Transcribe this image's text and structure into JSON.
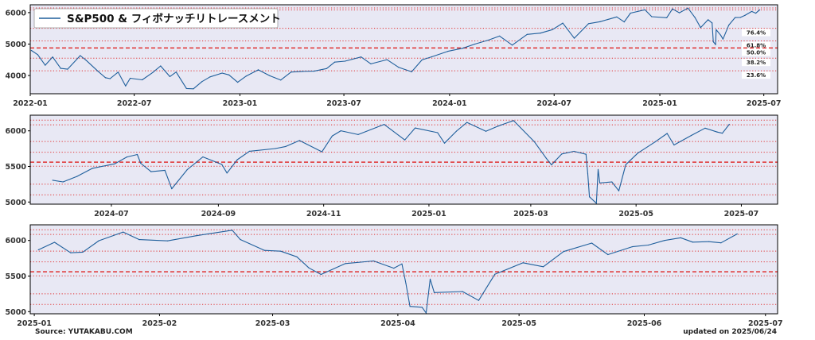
{
  "chart_data": [
    {
      "type": "line",
      "legend": "S&P500 & フィボナッチリトレースメント",
      "legend_position": "top-left",
      "grid": false,
      "x_start": "2022-01-01",
      "x_end": "2025-07-25",
      "ylim": [
        3420,
        6250
      ],
      "y_ticks": [
        4000,
        5000,
        6000
      ],
      "x_ticks": [
        {
          "date": "2022-01-01",
          "label": "2022-01"
        },
        {
          "date": "2022-07-01",
          "label": "2022-07"
        },
        {
          "date": "2023-01-01",
          "label": "2023-01"
        },
        {
          "date": "2023-07-01",
          "label": "2023-07"
        },
        {
          "date": "2024-01-01",
          "label": "2024-01"
        },
        {
          "date": "2024-07-01",
          "label": "2024-07"
        },
        {
          "date": "2025-01-01",
          "label": "2025-01"
        },
        {
          "date": "2025-07-01",
          "label": "2025-07"
        }
      ],
      "fib_levels": [
        {
          "label": "76.4%",
          "value": 5503,
          "style": "dotted"
        },
        {
          "label": "61.8%",
          "value": 5101,
          "style": "dotted"
        },
        {
          "label": "50.0%",
          "value": 4876,
          "style": "dashed"
        },
        {
          "label": "38.2%",
          "value": 4552,
          "style": "dotted"
        },
        {
          "label": "23.6%",
          "value": 4150,
          "style": "dotted"
        }
      ],
      "extra_dotted_levels": [
        6150,
        6085
      ],
      "series": [
        {
          "x": [
            "2022-01-03",
            "2022-01-14",
            "2022-01-27",
            "2022-02-09",
            "2022-02-23",
            "2022-03-07",
            "2022-03-29",
            "2022-04-08",
            "2022-04-29",
            "2022-05-12",
            "2022-05-20",
            "2022-06-03",
            "2022-06-16",
            "2022-06-24",
            "2022-07-15",
            "2022-08-02",
            "2022-08-16",
            "2022-09-01",
            "2022-09-12",
            "2022-09-30",
            "2022-10-12",
            "2022-10-27",
            "2022-11-10",
            "2022-12-01",
            "2022-12-13",
            "2022-12-28",
            "2023-01-12",
            "2023-02-02",
            "2023-02-22",
            "2023-03-13",
            "2023-03-31",
            "2023-04-20",
            "2023-05-10",
            "2023-06-01",
            "2023-06-15",
            "2023-07-03",
            "2023-07-31",
            "2023-08-17",
            "2023-09-14",
            "2023-10-04",
            "2023-10-27",
            "2023-11-14",
            "2023-12-01",
            "2023-12-29",
            "2024-01-24",
            "2024-02-14",
            "2024-03-08",
            "2024-03-28",
            "2024-04-19",
            "2024-05-15",
            "2024-06-07",
            "2024-06-28",
            "2024-07-16",
            "2024-08-05",
            "2024-08-30",
            "2024-09-19",
            "2024-10-18",
            "2024-10-31",
            "2024-11-11",
            "2024-12-06",
            "2024-12-18",
            "2025-01-13",
            "2025-01-23",
            "2025-02-04",
            "2025-02-19",
            "2025-03-03",
            "2025-03-13",
            "2025-03-26",
            "2025-04-02",
            "2025-04-04",
            "2025-04-08",
            "2025-04-09",
            "2025-04-17",
            "2025-04-21",
            "2025-05-01",
            "2025-05-12",
            "2025-05-21",
            "2025-05-29",
            "2025-06-10",
            "2025-06-17",
            "2025-06-24"
          ],
          "values": [
            4797,
            4662,
            4326,
            4590,
            4226,
            4201,
            4632,
            4488,
            4132,
            3930,
            3901,
            4108,
            3667,
            3912,
            3863,
            4091,
            4305,
            3966,
            4110,
            3586,
            3577,
            3807,
            3956,
            4076,
            4020,
            3783,
            3983,
            4180,
            3991,
            3855,
            4109,
            4130,
            4138,
            4221,
            4425,
            4456,
            4589,
            4370,
            4505,
            4263,
            4117,
            4496,
            4594,
            4770,
            4868,
            5000,
            5123,
            5254,
            4967,
            5308,
            5347,
            5460,
            5667,
            5186,
            5648,
            5713,
            5864,
            5705,
            5984,
            6090,
            5872,
            5837,
            6118,
            5995,
            6144,
            5849,
            5522,
            5776,
            5671,
            5074,
            4982,
            5457,
            5283,
            5158,
            5604,
            5844,
            5845,
            5912,
            6038,
            5983,
            6092
          ]
        }
      ]
    },
    {
      "type": "line",
      "grid": false,
      "x_start": "2024-05-15",
      "x_end": "2025-07-22",
      "ylim": [
        4970,
        6220
      ],
      "y_ticks": [
        5000,
        5500,
        6000
      ],
      "x_ticks": [
        {
          "date": "2024-07-01",
          "label": "2024-07"
        },
        {
          "date": "2024-09-01",
          "label": "2024-09"
        },
        {
          "date": "2024-11-01",
          "label": "2024-11"
        },
        {
          "date": "2025-01-01",
          "label": "2025-01"
        },
        {
          "date": "2025-03-01",
          "label": "2025-03"
        },
        {
          "date": "2025-05-01",
          "label": "2025-05"
        },
        {
          "date": "2025-07-01",
          "label": "2025-07"
        }
      ],
      "dotted_levels": [
        6150,
        6085,
        5850,
        5700,
        5503,
        5250,
        5101
      ],
      "dashed_level": 5560,
      "series": [
        {
          "x": [
            "2024-05-28",
            "2024-06-03",
            "2024-06-11",
            "2024-06-20",
            "2024-07-03",
            "2024-07-10",
            "2024-07-16",
            "2024-07-18",
            "2024-07-24",
            "2024-08-01",
            "2024-08-05",
            "2024-08-14",
            "2024-08-23",
            "2024-09-03",
            "2024-09-06",
            "2024-09-12",
            "2024-09-19",
            "2024-10-04",
            "2024-10-10",
            "2024-10-18",
            "2024-10-31",
            "2024-11-06",
            "2024-11-11",
            "2024-11-21",
            "2024-12-06",
            "2024-12-18",
            "2024-12-24",
            "2025-01-06",
            "2025-01-10",
            "2025-01-17",
            "2025-01-23",
            "2025-02-03",
            "2025-02-10",
            "2025-02-19",
            "2025-03-03",
            "2025-03-10",
            "2025-03-13",
            "2025-03-19",
            "2025-03-26",
            "2025-04-02",
            "2025-04-03",
            "2025-04-04",
            "2025-04-08",
            "2025-04-09",
            "2025-04-10",
            "2025-04-17",
            "2025-04-21",
            "2025-04-25",
            "2025-05-02",
            "2025-05-12",
            "2025-05-19",
            "2025-05-23",
            "2025-06-02",
            "2025-06-10",
            "2025-06-17",
            "2025-06-20",
            "2025-06-24"
          ],
          "values": [
            5306,
            5283,
            5360,
            5473,
            5537,
            5633,
            5667,
            5545,
            5427,
            5446,
            5186,
            5455,
            5634,
            5528,
            5408,
            5595,
            5713,
            5751,
            5780,
            5864,
            5705,
            5929,
            6001,
            5948,
            6090,
            5872,
            6040,
            5975,
            5827,
            5997,
            6118,
            5994,
            6066,
            6144,
            5849,
            5614,
            5522,
            5675,
            5712,
            5671,
            5396,
            5074,
            4982,
            5457,
            5268,
            5283,
            5158,
            5525,
            5686,
            5844,
            5963,
            5802,
            5935,
            6038,
            5983,
            5967,
            6092
          ]
        }
      ]
    },
    {
      "type": "line",
      "grid": false,
      "x_start": "2024-12-31",
      "x_end": "2025-07-04",
      "ylim": [
        4970,
        6220
      ],
      "y_ticks": [
        5000,
        5500,
        6000
      ],
      "x_ticks": [
        {
          "date": "2025-01-01",
          "label": "2025-01"
        },
        {
          "date": "2025-02-01",
          "label": "2025-02"
        },
        {
          "date": "2025-03-01",
          "label": "2025-03"
        },
        {
          "date": "2025-04-01",
          "label": "2025-04"
        },
        {
          "date": "2025-05-01",
          "label": "2025-05"
        },
        {
          "date": "2025-06-01",
          "label": "2025-06"
        },
        {
          "date": "2025-07-01",
          "label": "2025-07"
        }
      ],
      "dotted_levels": [
        6150,
        6085,
        5850,
        5700,
        5503,
        5250,
        5101
      ],
      "dashed_level": 5560,
      "series": [
        {
          "x": [
            "2025-01-02",
            "2025-01-06",
            "2025-01-10",
            "2025-01-13",
            "2025-01-17",
            "2025-01-23",
            "2025-01-27",
            "2025-02-03",
            "2025-02-10",
            "2025-02-19",
            "2025-02-21",
            "2025-02-27",
            "2025-03-03",
            "2025-03-07",
            "2025-03-10",
            "2025-03-13",
            "2025-03-19",
            "2025-03-26",
            "2025-03-31",
            "2025-04-02",
            "2025-04-03",
            "2025-04-04",
            "2025-04-07",
            "2025-04-08",
            "2025-04-09",
            "2025-04-10",
            "2025-04-17",
            "2025-04-21",
            "2025-04-25",
            "2025-05-02",
            "2025-05-07",
            "2025-05-12",
            "2025-05-19",
            "2025-05-23",
            "2025-05-29",
            "2025-06-02",
            "2025-06-06",
            "2025-06-10",
            "2025-06-13",
            "2025-06-17",
            "2025-06-20",
            "2025-06-24"
          ],
          "values": [
            5868,
            5975,
            5827,
            5836,
            5997,
            6118,
            6012,
            5994,
            6066,
            6144,
            6013,
            5861,
            5849,
            5770,
            5614,
            5522,
            5675,
            5712,
            5611,
            5671,
            5396,
            5074,
            5062,
            4982,
            5457,
            5268,
            5283,
            5158,
            5525,
            5686,
            5631,
            5844,
            5963,
            5802,
            5912,
            5935,
            6000,
            6038,
            5977,
            5983,
            5967,
            6092
          ]
        }
      ]
    }
  ],
  "footer": {
    "source": "Source: YUTAKABU.COM",
    "updated": "updated on 2025/06/24"
  },
  "colors": {
    "line": "#1f5f9c",
    "plot_bg": "#e8e8f4",
    "fib_line": "#e03030",
    "axis": "#000000",
    "text": "#333333"
  }
}
